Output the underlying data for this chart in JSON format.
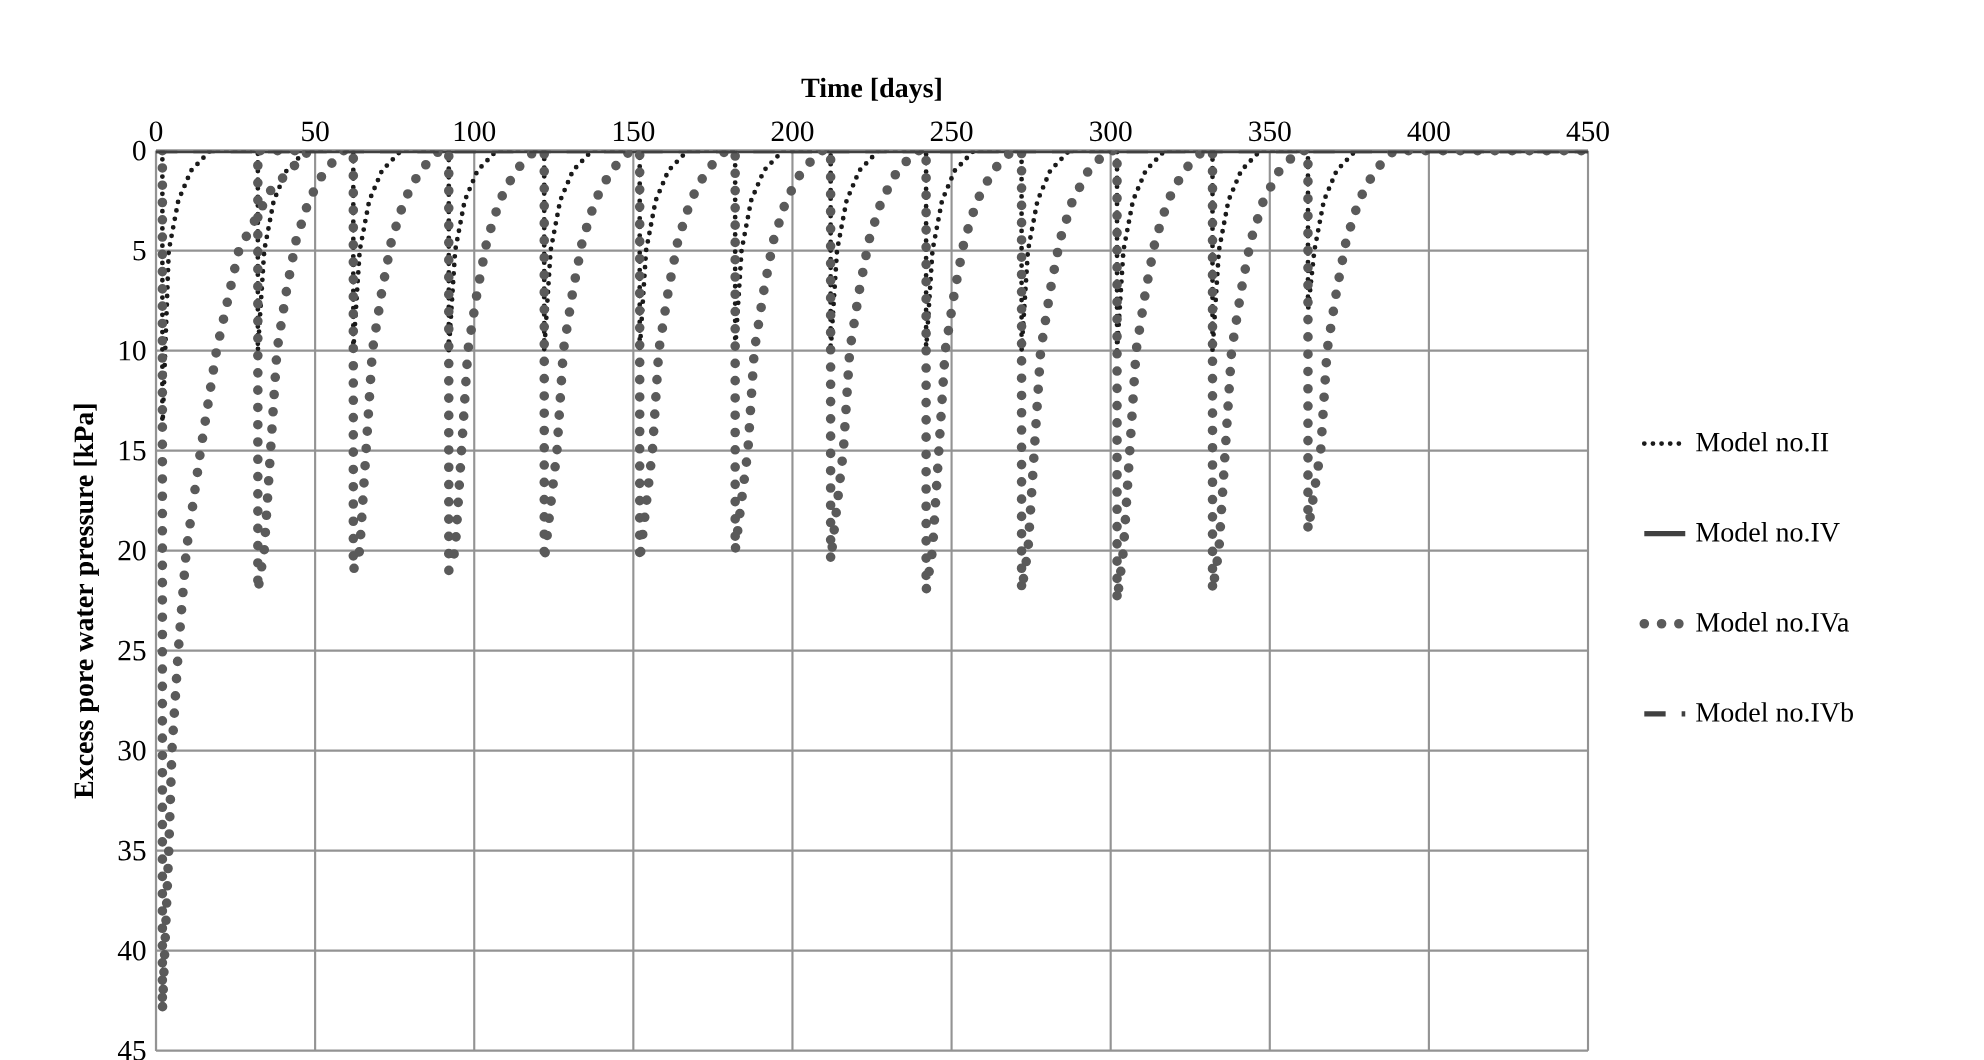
{
  "chart_data": {
    "type": "line",
    "xlabel": "Time [days]",
    "ylabel": "Excess pore water pressure [kPa]",
    "xlim": [
      0,
      450
    ],
    "xticks": [
      0,
      50,
      100,
      150,
      200,
      250,
      300,
      350,
      400,
      450
    ],
    "ylim": [
      45,
      0
    ],
    "yticks": [
      0,
      5,
      10,
      15,
      20,
      25,
      30,
      35,
      40,
      45
    ],
    "grid": true,
    "legend": "right",
    "series": [
      {
        "name": "Model no.II",
        "color": "#1a1a1a",
        "line_style": "dotted",
        "x": [
          2,
          2,
          4,
          7,
          11,
          17,
          32,
          32,
          34,
          37,
          41,
          47,
          62,
          62,
          64,
          67,
          71,
          77,
          92,
          92,
          94,
          97,
          101,
          107,
          122,
          122,
          124,
          127,
          131,
          137,
          152,
          152,
          154,
          157,
          161,
          167,
          182,
          182,
          184,
          187,
          191,
          197,
          212,
          212,
          214,
          217,
          221,
          227,
          242,
          242,
          244,
          247,
          251,
          257,
          272,
          272,
          274,
          277,
          281,
          287,
          302,
          302,
          304,
          307,
          311,
          317,
          332,
          332,
          334,
          337,
          341,
          347,
          362,
          362,
          364,
          367,
          371,
          377
        ],
        "values": [
          0,
          14,
          5,
          2.5,
          1,
          0,
          0,
          10,
          5,
          2.5,
          1,
          0,
          0,
          10,
          5,
          2.5,
          1,
          0,
          0,
          10,
          5,
          2.5,
          1,
          0,
          0,
          10,
          5,
          2.5,
          1,
          0,
          0,
          10,
          5,
          2.5,
          1,
          0,
          0,
          10,
          5,
          2.5,
          1,
          0,
          0,
          10,
          5,
          2.5,
          1,
          0,
          0,
          10,
          5,
          2.5,
          1,
          0,
          0,
          10,
          5,
          2.5,
          1,
          0,
          0,
          10,
          5,
          2.5,
          1,
          0,
          0,
          10,
          5,
          2.5,
          1,
          0,
          0,
          8,
          5,
          2.5,
          1,
          0
        ]
      },
      {
        "name": "Model no.IV",
        "color": "#404040",
        "line_style": "solid",
        "x": [
          0,
          450
        ],
        "values": [
          0,
          0
        ]
      },
      {
        "name": "Model no.IVa",
        "color": "#5a5a5a",
        "line_style": "dotted",
        "x": [
          2,
          2,
          4,
          5,
          7,
          9.5,
          14,
          19,
          26,
          36,
          48,
          32,
          32,
          34,
          36,
          38,
          41,
          44,
          48,
          53,
          59,
          62,
          62,
          64,
          66,
          68,
          71,
          74,
          78,
          83,
          89,
          92,
          92,
          94,
          96,
          98,
          101,
          104,
          108,
          113,
          119,
          122,
          122,
          126,
          128,
          131,
          134,
          138,
          143,
          149,
          152,
          152,
          156,
          158,
          161,
          164,
          168,
          173,
          179,
          182,
          182,
          186,
          188,
          191,
          194,
          198,
          203,
          209,
          212,
          212,
          216,
          218,
          221,
          224,
          228,
          233,
          239,
          242,
          242,
          244,
          246,
          248,
          251,
          254,
          258,
          263,
          269,
          272,
          272,
          274,
          276,
          278,
          281,
          284,
          288,
          293,
          299,
          302,
          302,
          304,
          306,
          308,
          311,
          314,
          318,
          323,
          329,
          332,
          332,
          334,
          336,
          338,
          341,
          344,
          348,
          353,
          359,
          362,
          362,
          366,
          368,
          371,
          374,
          378,
          383,
          389,
          450
        ],
        "values": [
          0,
          43,
          35,
          30,
          25,
          20,
          15,
          10,
          5,
          2,
          0,
          0,
          22,
          20,
          15,
          10,
          7,
          4.5,
          2.5,
          1,
          0,
          0,
          21,
          20,
          15,
          10,
          7,
          4.5,
          2.5,
          1,
          0,
          0,
          21,
          20,
          15,
          10,
          7,
          4.5,
          2.5,
          1,
          0,
          0,
          20.5,
          15,
          10,
          7,
          4.5,
          2.5,
          1,
          0,
          0,
          20.5,
          15,
          10,
          7,
          4.5,
          2.5,
          1,
          0,
          0,
          20,
          15,
          10,
          7,
          4.5,
          2.5,
          1,
          0,
          0,
          20.5,
          15,
          10,
          7,
          4.5,
          2.5,
          1,
          0,
          0,
          22,
          20,
          15,
          10,
          7,
          4.5,
          2.5,
          1,
          0,
          0,
          22,
          20,
          15,
          10,
          7,
          4.5,
          2.5,
          1,
          0,
          0,
          22.5,
          20,
          15,
          10,
          7,
          4.5,
          2.5,
          1,
          0,
          0,
          22,
          20,
          15,
          10,
          7,
          4.5,
          2.5,
          1,
          0,
          0,
          19,
          15,
          10,
          7,
          4.5,
          2.5,
          1,
          0,
          0
        ]
      },
      {
        "name": "Model no.IVb",
        "color": "#404040",
        "line_style": "dashed",
        "x": [
          0,
          450
        ],
        "values": [
          0,
          0
        ]
      }
    ]
  }
}
